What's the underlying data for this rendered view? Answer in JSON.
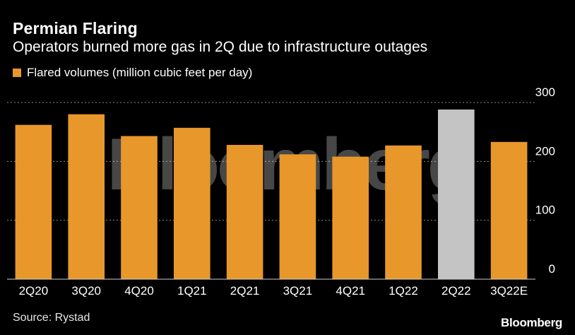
{
  "header": {
    "title": "Permian Flaring",
    "subtitle": "Operators burned more gas in 2Q due to infrastructure outages"
  },
  "legend": {
    "label": "Flared volumes (million cubic feet per day)"
  },
  "footer": {
    "source": "Source: Rystad",
    "brand": "Bloomberg"
  },
  "watermark": "Bloomberg",
  "colors": {
    "bar": "#e8972a",
    "highlight_bar": "#c4c4c4",
    "gridline": "#8a8a8a",
    "background": "#000000"
  },
  "chart_data": {
    "type": "bar",
    "categories": [
      "2Q20",
      "3Q20",
      "4Q20",
      "1Q21",
      "2Q21",
      "3Q21",
      "4Q21",
      "1Q22",
      "2Q22",
      "3Q22E"
    ],
    "series": [
      {
        "name": "Flared volumes (million cubic feet per day)",
        "values": [
          262,
          280,
          243,
          257,
          228,
          212,
          208,
          227,
          288,
          233
        ]
      }
    ],
    "highlight_category": "2Q22",
    "ylim": [
      0,
      300
    ],
    "yticks": [
      0,
      100,
      200,
      300
    ],
    "grid": true,
    "y_axis_side": "right",
    "legend_position": "top-left"
  }
}
